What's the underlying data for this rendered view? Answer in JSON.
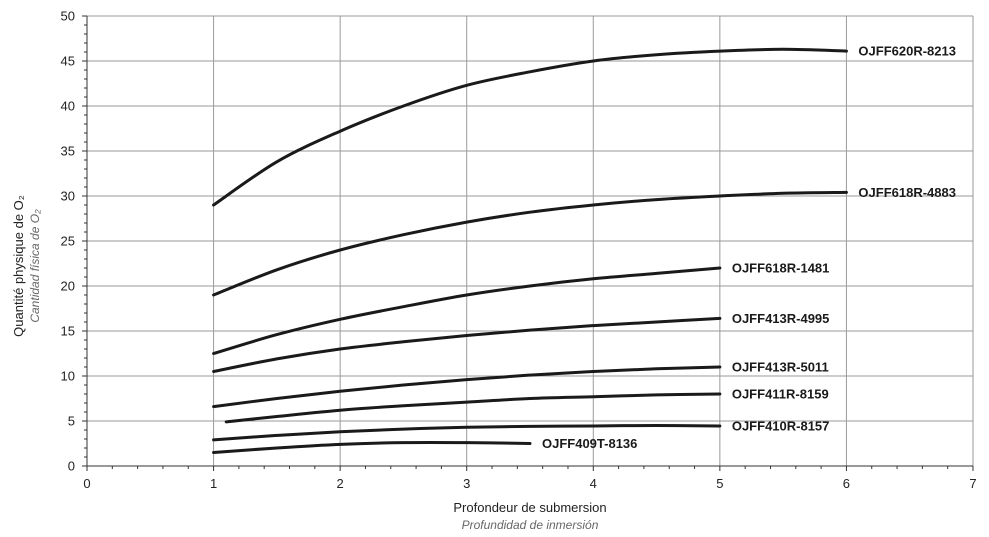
{
  "chart_data": {
    "type": "line",
    "xlabel": "Profondeur de submersion",
    "xlabel_alt": "Profundidad de inmersión",
    "ylabel": "Quantité physique de O₂",
    "ylabel_alt": "Cantidad física de O₂",
    "xlim": [
      0,
      7
    ],
    "ylim": [
      0,
      50
    ],
    "x_ticks": [
      "0",
      "1",
      "2",
      "3",
      "4",
      "5",
      "6",
      "7"
    ],
    "y_ticks": [
      "0",
      "5",
      "10",
      "15",
      "20",
      "25",
      "30",
      "35",
      "40",
      "45",
      "50"
    ],
    "grid": true,
    "series": [
      {
        "name": "OJFF620R-8213",
        "x": [
          1,
          1.5,
          2,
          2.5,
          3,
          3.5,
          4,
          4.5,
          5,
          5.5,
          6
        ],
        "y": [
          29,
          33.8,
          37.2,
          40,
          42.3,
          43.8,
          45,
          45.7,
          46.1,
          46.3,
          46.1
        ]
      },
      {
        "name": "OJFF618R-4883",
        "x": [
          1,
          1.5,
          2,
          2.5,
          3,
          3.5,
          4,
          4.5,
          5,
          5.5,
          6
        ],
        "y": [
          19,
          21.8,
          24,
          25.7,
          27.1,
          28.2,
          29,
          29.6,
          30,
          30.3,
          30.4
        ]
      },
      {
        "name": "OJFF618R-1481",
        "x": [
          1,
          1.5,
          2,
          2.5,
          3,
          3.5,
          4,
          4.5,
          5
        ],
        "y": [
          12.5,
          14.6,
          16.3,
          17.7,
          19,
          20,
          20.8,
          21.4,
          22
        ]
      },
      {
        "name": "OJFF413R-4995",
        "x": [
          1,
          1.5,
          2,
          2.5,
          3,
          3.5,
          4,
          4.5,
          5
        ],
        "y": [
          10.5,
          11.9,
          13,
          13.8,
          14.5,
          15.1,
          15.6,
          16,
          16.4
        ]
      },
      {
        "name": "OJFF413R-5011",
        "x": [
          1,
          1.5,
          2,
          2.5,
          3,
          3.5,
          4,
          4.5,
          5
        ],
        "y": [
          6.6,
          7.5,
          8.3,
          9,
          9.6,
          10.1,
          10.5,
          10.8,
          11
        ]
      },
      {
        "name": "OJFF411R-8159",
        "x": [
          1.1,
          1.5,
          2,
          2.5,
          3,
          3.5,
          4,
          4.5,
          5
        ],
        "y": [
          4.9,
          5.5,
          6.2,
          6.7,
          7.1,
          7.5,
          7.7,
          7.9,
          8
        ]
      },
      {
        "name": "OJFF410R-8157",
        "x": [
          1,
          1.5,
          2,
          2.5,
          3,
          3.5,
          4,
          4.5,
          5
        ],
        "y": [
          2.9,
          3.4,
          3.8,
          4.1,
          4.3,
          4.4,
          4.45,
          4.5,
          4.45
        ]
      },
      {
        "name": "OJFF409T-8136",
        "x": [
          1,
          1.5,
          2,
          2.5,
          3,
          3.5
        ],
        "y": [
          1.5,
          2,
          2.4,
          2.6,
          2.6,
          2.5
        ]
      }
    ]
  }
}
